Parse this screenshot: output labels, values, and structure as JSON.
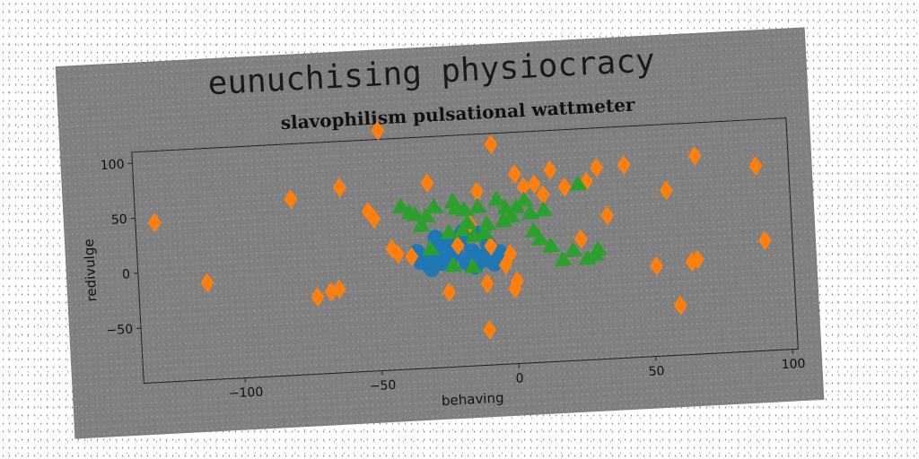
{
  "chart_data": {
    "type": "scatter",
    "suptitle": "eunuchising physiocracy",
    "title": "slavophilism pulsational wattmeter",
    "xlabel": "behaving",
    "ylabel": "redivulge",
    "xlim": [
      -137,
      102
    ],
    "ylim": [
      -100,
      110
    ],
    "xticks": [
      -100,
      -50,
      0,
      50,
      100
    ],
    "yticks": [
      -50,
      0,
      50,
      100
    ],
    "xtick_labels": [
      "−100",
      "−50",
      "0",
      "50",
      "100"
    ],
    "ytick_labels": [
      "−50",
      "0",
      "50",
      "100"
    ],
    "grid": false,
    "series": [
      {
        "marker": "circle",
        "color": "#1f77b4",
        "points": [
          [
            -35,
            6
          ],
          [
            -33,
            0
          ],
          [
            -31,
            -6
          ],
          [
            -29,
            3
          ],
          [
            -27,
            12
          ],
          [
            -25,
            -2
          ],
          [
            -23,
            8
          ],
          [
            -21,
            2
          ],
          [
            -19,
            15
          ],
          [
            -17,
            -6
          ],
          [
            -15,
            4
          ],
          [
            -13,
            20
          ],
          [
            -11,
            -4
          ],
          [
            -9,
            10
          ],
          [
            -7,
            -8
          ],
          [
            -5,
            2
          ],
          [
            -30,
            -10
          ],
          [
            -26,
            -5
          ],
          [
            -18,
            22
          ],
          [
            -14,
            -10
          ],
          [
            -22,
            16
          ],
          [
            -10,
            0
          ],
          [
            -28,
            18
          ],
          [
            -34,
            -3
          ]
        ]
      },
      {
        "marker": "diamond",
        "color": "#ff7f0e",
        "points": [
          [
            -130,
            45
          ],
          [
            -112,
            -12
          ],
          [
            -80,
            60
          ],
          [
            -72,
            -30
          ],
          [
            -67,
            -26
          ],
          [
            -64,
            -24
          ],
          [
            -62,
            68
          ],
          [
            -52,
            45
          ],
          [
            -50,
            38
          ],
          [
            -47,
            118
          ],
          [
            -44,
            10
          ],
          [
            -42,
            5
          ],
          [
            -30,
            68
          ],
          [
            -24,
            -32
          ],
          [
            -20,
            10
          ],
          [
            -15,
            28
          ],
          [
            -10,
            -26
          ],
          [
            -8,
            8
          ],
          [
            -6,
            100
          ],
          [
            -3,
            -10
          ],
          [
            -1,
            0
          ],
          [
            0,
            -32
          ],
          [
            1,
            -25
          ],
          [
            2,
            72
          ],
          [
            5,
            60
          ],
          [
            9,
            62
          ],
          [
            12,
            52
          ],
          [
            15,
            74
          ],
          [
            20,
            58
          ],
          [
            25,
            10
          ],
          [
            28,
            62
          ],
          [
            32,
            74
          ],
          [
            35,
            30
          ],
          [
            42,
            75
          ],
          [
            52,
            -18
          ],
          [
            57,
            50
          ],
          [
            60,
            -55
          ],
          [
            65,
            -16
          ],
          [
            67,
            -14
          ],
          [
            68,
            80
          ],
          [
            90,
            68
          ],
          [
            92,
            0
          ],
          [
            -10,
            -68
          ],
          [
            -12,
            58
          ],
          [
            -37,
            2
          ]
        ]
      },
      {
        "marker": "triangle",
        "color": "#2ca02c",
        "points": [
          [
            -40,
            48
          ],
          [
            -37,
            42
          ],
          [
            -35,
            40
          ],
          [
            -33,
            30
          ],
          [
            -31,
            38
          ],
          [
            -30,
            8
          ],
          [
            -28,
            46
          ],
          [
            -23,
            22
          ],
          [
            -21,
            50
          ],
          [
            -20,
            44
          ],
          [
            -18,
            24
          ],
          [
            -17,
            42
          ],
          [
            -16,
            30
          ],
          [
            -15,
            -10
          ],
          [
            -14,
            18
          ],
          [
            -12,
            44
          ],
          [
            -10,
            20
          ],
          [
            -9,
            28
          ],
          [
            -5,
            50
          ],
          [
            -2,
            42
          ],
          [
            0,
            34
          ],
          [
            2,
            42
          ],
          [
            5,
            48
          ],
          [
            7,
            36
          ],
          [
            8,
            20
          ],
          [
            10,
            12
          ],
          [
            12,
            38
          ],
          [
            14,
            5
          ],
          [
            18,
            -8
          ],
          [
            22,
            0
          ],
          [
            25,
            60
          ],
          [
            27,
            -8
          ],
          [
            30,
            -5
          ],
          [
            31,
            0
          ],
          [
            -3,
            30
          ],
          [
            -22,
            -8
          ]
        ]
      }
    ]
  }
}
